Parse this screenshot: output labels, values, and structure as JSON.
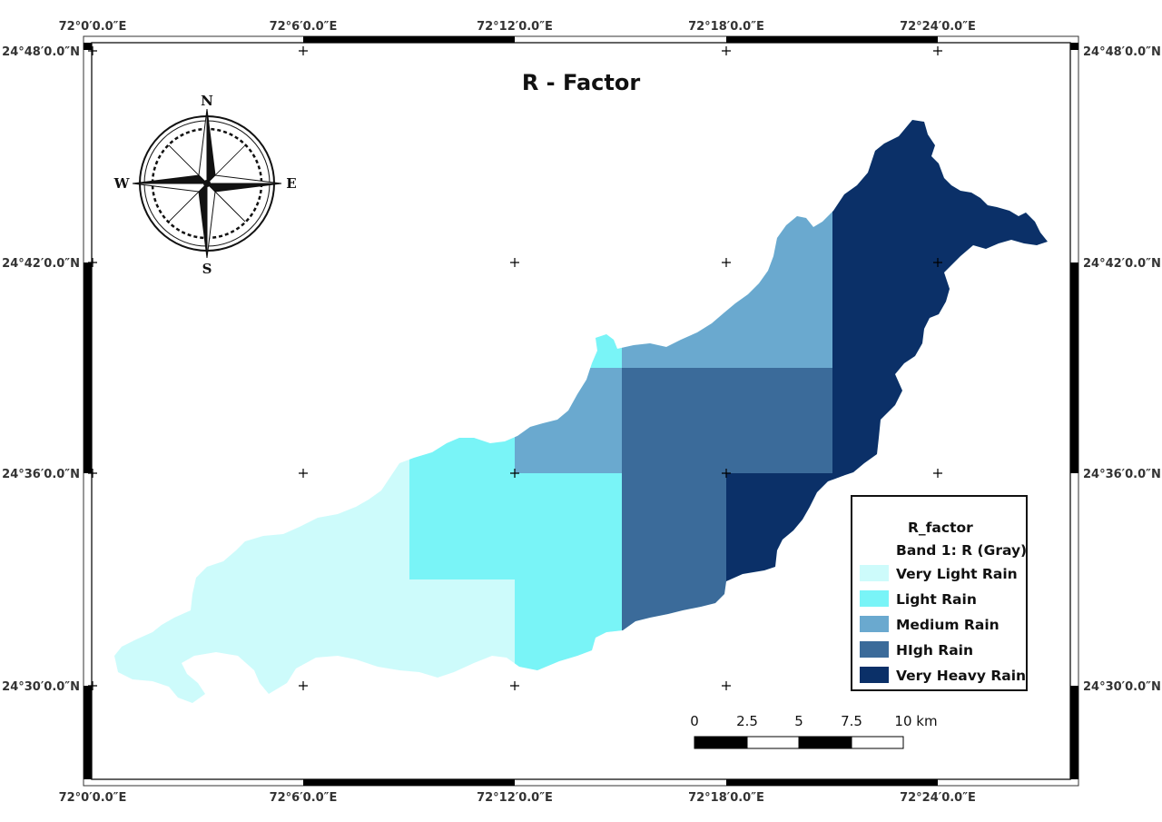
{
  "map": {
    "title": "R - Factor",
    "top_longitude_labels": [
      "72°0′0.0″E",
      "72°6′0.0″E",
      "72°12′0.0″E",
      "72°18′0.0″E",
      "72°24′0.0″E"
    ],
    "bottom_longitude_labels": [
      "72°0′0.0″E",
      "72°6′0.0″E",
      "72°12′0.0″E",
      "72°18′0.0″E",
      "72°24′0.0″E"
    ],
    "left_latitude_labels": [
      "24°48′0.0″N",
      "24°42′0.0″N",
      "24°36′0.0″N",
      "24°30′0.0″N"
    ],
    "right_latitude_labels": [
      "24°48′0.0″N",
      "24°42′0.0″N",
      "24°36′0.0″N",
      "24°30′0.0″N"
    ]
  },
  "compass": {
    "icon": "compass-rose-icon",
    "north": "N",
    "south": "S",
    "east": "E",
    "west": "W"
  },
  "legend": {
    "title": "R_factor",
    "subtitle": "Band 1: R (Gray)",
    "classes": [
      {
        "label": "Very Light Rain",
        "color": "#cdfbfb"
      },
      {
        "label": "Light Rain",
        "color": "#79f4f7"
      },
      {
        "label": "Medium Rain",
        "color": "#6aa9cf"
      },
      {
        "label": "HIgh Rain",
        "color": "#3b6b9a"
      },
      {
        "label": "Very Heavy Rain",
        "color": "#0b3068"
      }
    ]
  },
  "scale_bar": {
    "labels": [
      "0",
      "2.5",
      "5",
      "7.5",
      "10 km"
    ]
  }
}
